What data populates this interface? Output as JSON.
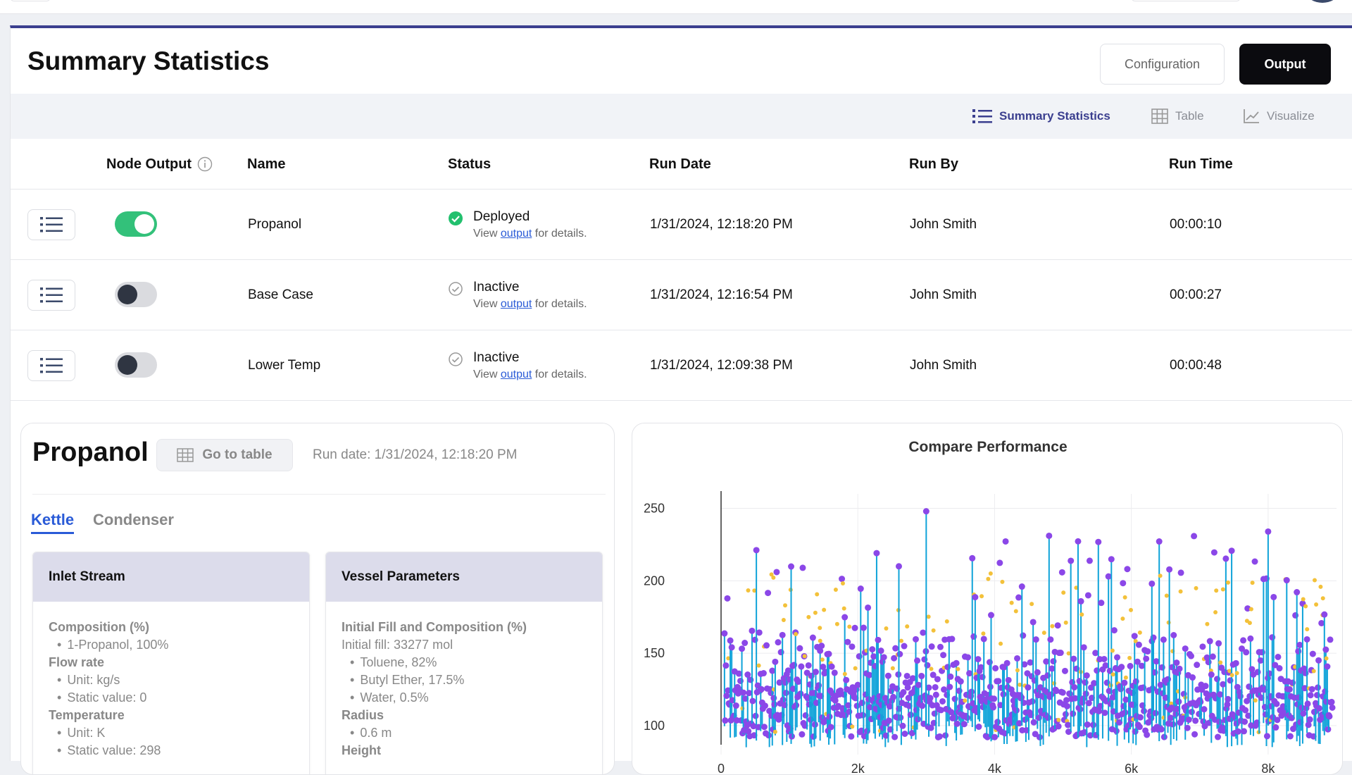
{
  "page": {
    "title": "Summary Statistics",
    "config_label": "Configuration",
    "output_label": "Output"
  },
  "views": {
    "summary_label": "Summary Statistics",
    "table_label": "Table",
    "visualize_label": "Visualize"
  },
  "table": {
    "headers": {
      "node_output": "Node Output",
      "name": "Name",
      "status": "Status",
      "run_date": "Run Date",
      "run_by": "Run By",
      "run_time": "Run Time"
    },
    "rows": [
      {
        "name": "Propanol",
        "status": "Deployed",
        "view_prefix": "View",
        "view_link": "output",
        "view_suffix": "for details.",
        "run_date": "1/31/2024, 12:18:20 PM",
        "run_by": "John Smith",
        "run_time": "00:00:10",
        "enabled": true
      },
      {
        "name": "Base Case",
        "status": "Inactive",
        "view_prefix": "View",
        "view_link": "output",
        "view_suffix": "for details.",
        "run_date": "1/31/2024, 12:16:54 PM",
        "run_by": "John Smith",
        "run_time": "00:00:27",
        "enabled": false
      },
      {
        "name": "Lower Temp",
        "status": "Inactive",
        "view_prefix": "View",
        "view_link": "output",
        "view_suffix": "for details.",
        "run_date": "1/31/2024, 12:09:38 PM",
        "run_by": "John Smith",
        "run_time": "00:00:48",
        "enabled": false
      }
    ]
  },
  "detail": {
    "title": "Propanol",
    "goto_label": "Go to table",
    "run_date": "Run date: 1/31/2024, 12:18:20 PM",
    "tabs": [
      "Kettle",
      "Condenser"
    ],
    "inlet": {
      "title": "Inlet Stream",
      "composition_label": "Composition (%)",
      "composition_items": [
        "1-Propanol, 100%"
      ],
      "flow_label": "Flow rate",
      "flow_items": [
        "Unit: kg/s",
        "Static value: 0"
      ],
      "temp_label": "Temperature",
      "temp_items": [
        "Unit: K",
        "Static value: 298"
      ]
    },
    "vessel": {
      "title": "Vessel Parameters",
      "fill_label": "Initial Fill and Composition (%)",
      "fill_text": "Initial fill: 33277 mol",
      "fill_items": [
        "Toluene, 82%",
        "Butyl Ether, 17.5%",
        "Water, 0.5%"
      ],
      "radius_label": "Radius",
      "radius_items": [
        "0.6 m"
      ],
      "height_label": "Height"
    }
  },
  "chart_data": {
    "type": "scatter",
    "title": "Compare Performance",
    "xlabel": "",
    "ylabel": "",
    "x_ticks": [
      "0",
      "2k",
      "4k",
      "6k",
      "8k"
    ],
    "y_ticks": [
      "100",
      "150",
      "200",
      "250"
    ],
    "xlim": [
      0,
      9000
    ],
    "ylim": [
      80,
      260
    ],
    "colors": {
      "primary": "#8b47e8",
      "secondary": "#0fa3d9",
      "tertiary": "#f3c13a"
    },
    "grid": true
  }
}
